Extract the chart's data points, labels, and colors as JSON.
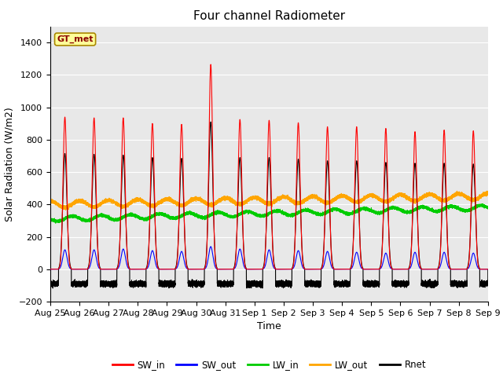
{
  "title": "Four channel Radiometer",
  "xlabel": "Time",
  "ylabel": "Solar Radiation (W/m2)",
  "ylim": [
    -200,
    1500
  ],
  "yticks": [
    -200,
    0,
    200,
    400,
    600,
    800,
    1000,
    1200,
    1400
  ],
  "x_labels": [
    "Aug 25",
    "Aug 26",
    "Aug 27",
    "Aug 28",
    "Aug 29",
    "Aug 30",
    "Aug 31",
    "Sep 1",
    "Sep 2",
    "Sep 3",
    "Sep 4",
    "Sep 5",
    "Sep 6",
    "Sep 7",
    "Sep 8",
    "Sep 9"
  ],
  "annotation_text": "GT_met",
  "annotation_color": "#8B0000",
  "annotation_bg": "#FFFF99",
  "line_colors": {
    "SW_in": "#FF0000",
    "SW_out": "#0000FF",
    "LW_in": "#00CC00",
    "LW_out": "#FFA500",
    "Rnet": "#000000"
  },
  "bg_color": "#E8E8E8",
  "n_days": 15,
  "sw_in_peaks": [
    940,
    935,
    935,
    900,
    895,
    1265,
    925,
    920,
    905,
    880,
    880,
    870,
    850,
    860,
    855
  ],
  "sw_out_peaks": [
    120,
    120,
    125,
    115,
    110,
    140,
    125,
    120,
    115,
    110,
    105,
    100,
    105,
    105,
    100
  ],
  "lw_in_base": 310,
  "lw_out_base": 400,
  "rnet_peaks": [
    715,
    710,
    705,
    690,
    685,
    910,
    690,
    690,
    680,
    670,
    670,
    660,
    655,
    655,
    650
  ],
  "rnet_night": -90,
  "title_fontsize": 11,
  "label_fontsize": 9,
  "tick_fontsize": 8
}
